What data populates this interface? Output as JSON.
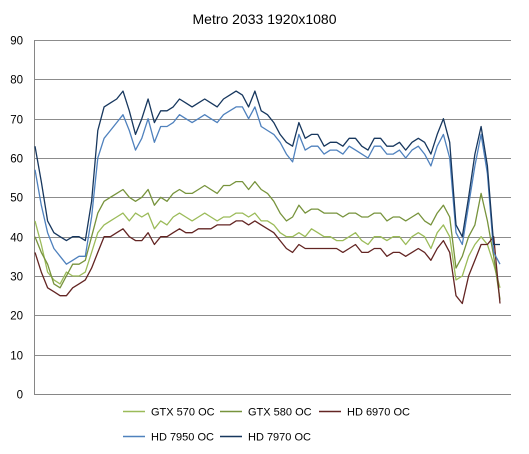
{
  "chart_data": {
    "type": "line",
    "title": "Metro 2033 1920x1080",
    "xlabel": "",
    "ylabel": "",
    "ylim": [
      0,
      90
    ],
    "yticks": [
      0,
      10,
      20,
      30,
      40,
      50,
      60,
      70,
      80,
      90
    ],
    "grid": "horizontal",
    "legend_position": "bottom",
    "series": [
      {
        "name": "GTX 570 OC",
        "color": "#9BBB59",
        "values": [
          44,
          38,
          31,
          29,
          28,
          31,
          30,
          30,
          31,
          36,
          41,
          43,
          44,
          45,
          46,
          44,
          46,
          45,
          46,
          42,
          44,
          43,
          45,
          46,
          45,
          44,
          45,
          46,
          45,
          44,
          45,
          45,
          46,
          46,
          45,
          46,
          44,
          44,
          43,
          41,
          40,
          40,
          41,
          40,
          42,
          41,
          40,
          40,
          39,
          39,
          40,
          41,
          39,
          38,
          40,
          40,
          39,
          40,
          40,
          38,
          40,
          41,
          40,
          37,
          41,
          43,
          40,
          29,
          30,
          35,
          38,
          40,
          38,
          33,
          27
        ]
      },
      {
        "name": "GTX 580 OC",
        "color": "#77933C",
        "values": [
          40,
          36,
          33,
          28,
          27,
          30,
          33,
          33,
          34,
          40,
          46,
          49,
          50,
          51,
          52,
          50,
          49,
          50,
          52,
          48,
          50,
          49,
          51,
          52,
          51,
          51,
          52,
          53,
          52,
          51,
          53,
          53,
          54,
          54,
          52,
          54,
          52,
          51,
          49,
          46,
          44,
          45,
          48,
          46,
          47,
          47,
          46,
          46,
          46,
          45,
          46,
          46,
          45,
          45,
          46,
          46,
          44,
          45,
          45,
          44,
          45,
          46,
          44,
          43,
          46,
          48,
          45,
          32,
          35,
          40,
          43,
          51,
          44,
          35,
          24
        ]
      },
      {
        "name": "HD 6970 OC",
        "color": "#632523",
        "values": [
          36,
          31,
          27,
          26,
          25,
          25,
          27,
          28,
          29,
          32,
          36,
          40,
          40,
          41,
          42,
          40,
          39,
          39,
          41,
          38,
          40,
          40,
          41,
          42,
          41,
          41,
          42,
          42,
          42,
          43,
          43,
          43,
          44,
          44,
          43,
          44,
          43,
          42,
          41,
          39,
          37,
          36,
          38,
          37,
          37,
          37,
          37,
          37,
          37,
          36,
          37,
          38,
          36,
          36,
          37,
          37,
          35,
          36,
          36,
          35,
          36,
          37,
          36,
          34,
          37,
          39,
          36,
          25,
          23,
          30,
          34,
          38,
          38,
          40,
          23
        ]
      },
      {
        "name": "HD 7950 OC",
        "color": "#4F81BD",
        "values": [
          57,
          48,
          41,
          37,
          35,
          33,
          34,
          35,
          35,
          45,
          60,
          65,
          67,
          69,
          71,
          67,
          62,
          65,
          70,
          64,
          68,
          68,
          69,
          71,
          70,
          69,
          70,
          71,
          70,
          69,
          71,
          72,
          73,
          73,
          70,
          73,
          68,
          67,
          66,
          64,
          61,
          59,
          66,
          62,
          63,
          63,
          61,
          62,
          62,
          61,
          63,
          62,
          61,
          60,
          63,
          63,
          61,
          61,
          62,
          60,
          62,
          63,
          61,
          58,
          63,
          66,
          60,
          41,
          38,
          48,
          58,
          66,
          56,
          36,
          33
        ]
      },
      {
        "name": "HD 7970 OC",
        "color": "#17375E",
        "values": [
          63,
          54,
          44,
          41,
          40,
          39,
          40,
          40,
          39,
          49,
          67,
          73,
          74,
          75,
          77,
          72,
          66,
          70,
          75,
          69,
          72,
          72,
          73,
          75,
          74,
          73,
          74,
          75,
          74,
          73,
          75,
          76,
          77,
          76,
          73,
          77,
          72,
          71,
          69,
          66,
          64,
          63,
          69,
          65,
          66,
          66,
          63,
          64,
          64,
          63,
          65,
          65,
          63,
          62,
          65,
          65,
          63,
          63,
          64,
          62,
          64,
          65,
          64,
          61,
          66,
          70,
          64,
          43,
          40,
          50,
          61,
          68,
          58,
          38,
          38
        ]
      }
    ]
  }
}
